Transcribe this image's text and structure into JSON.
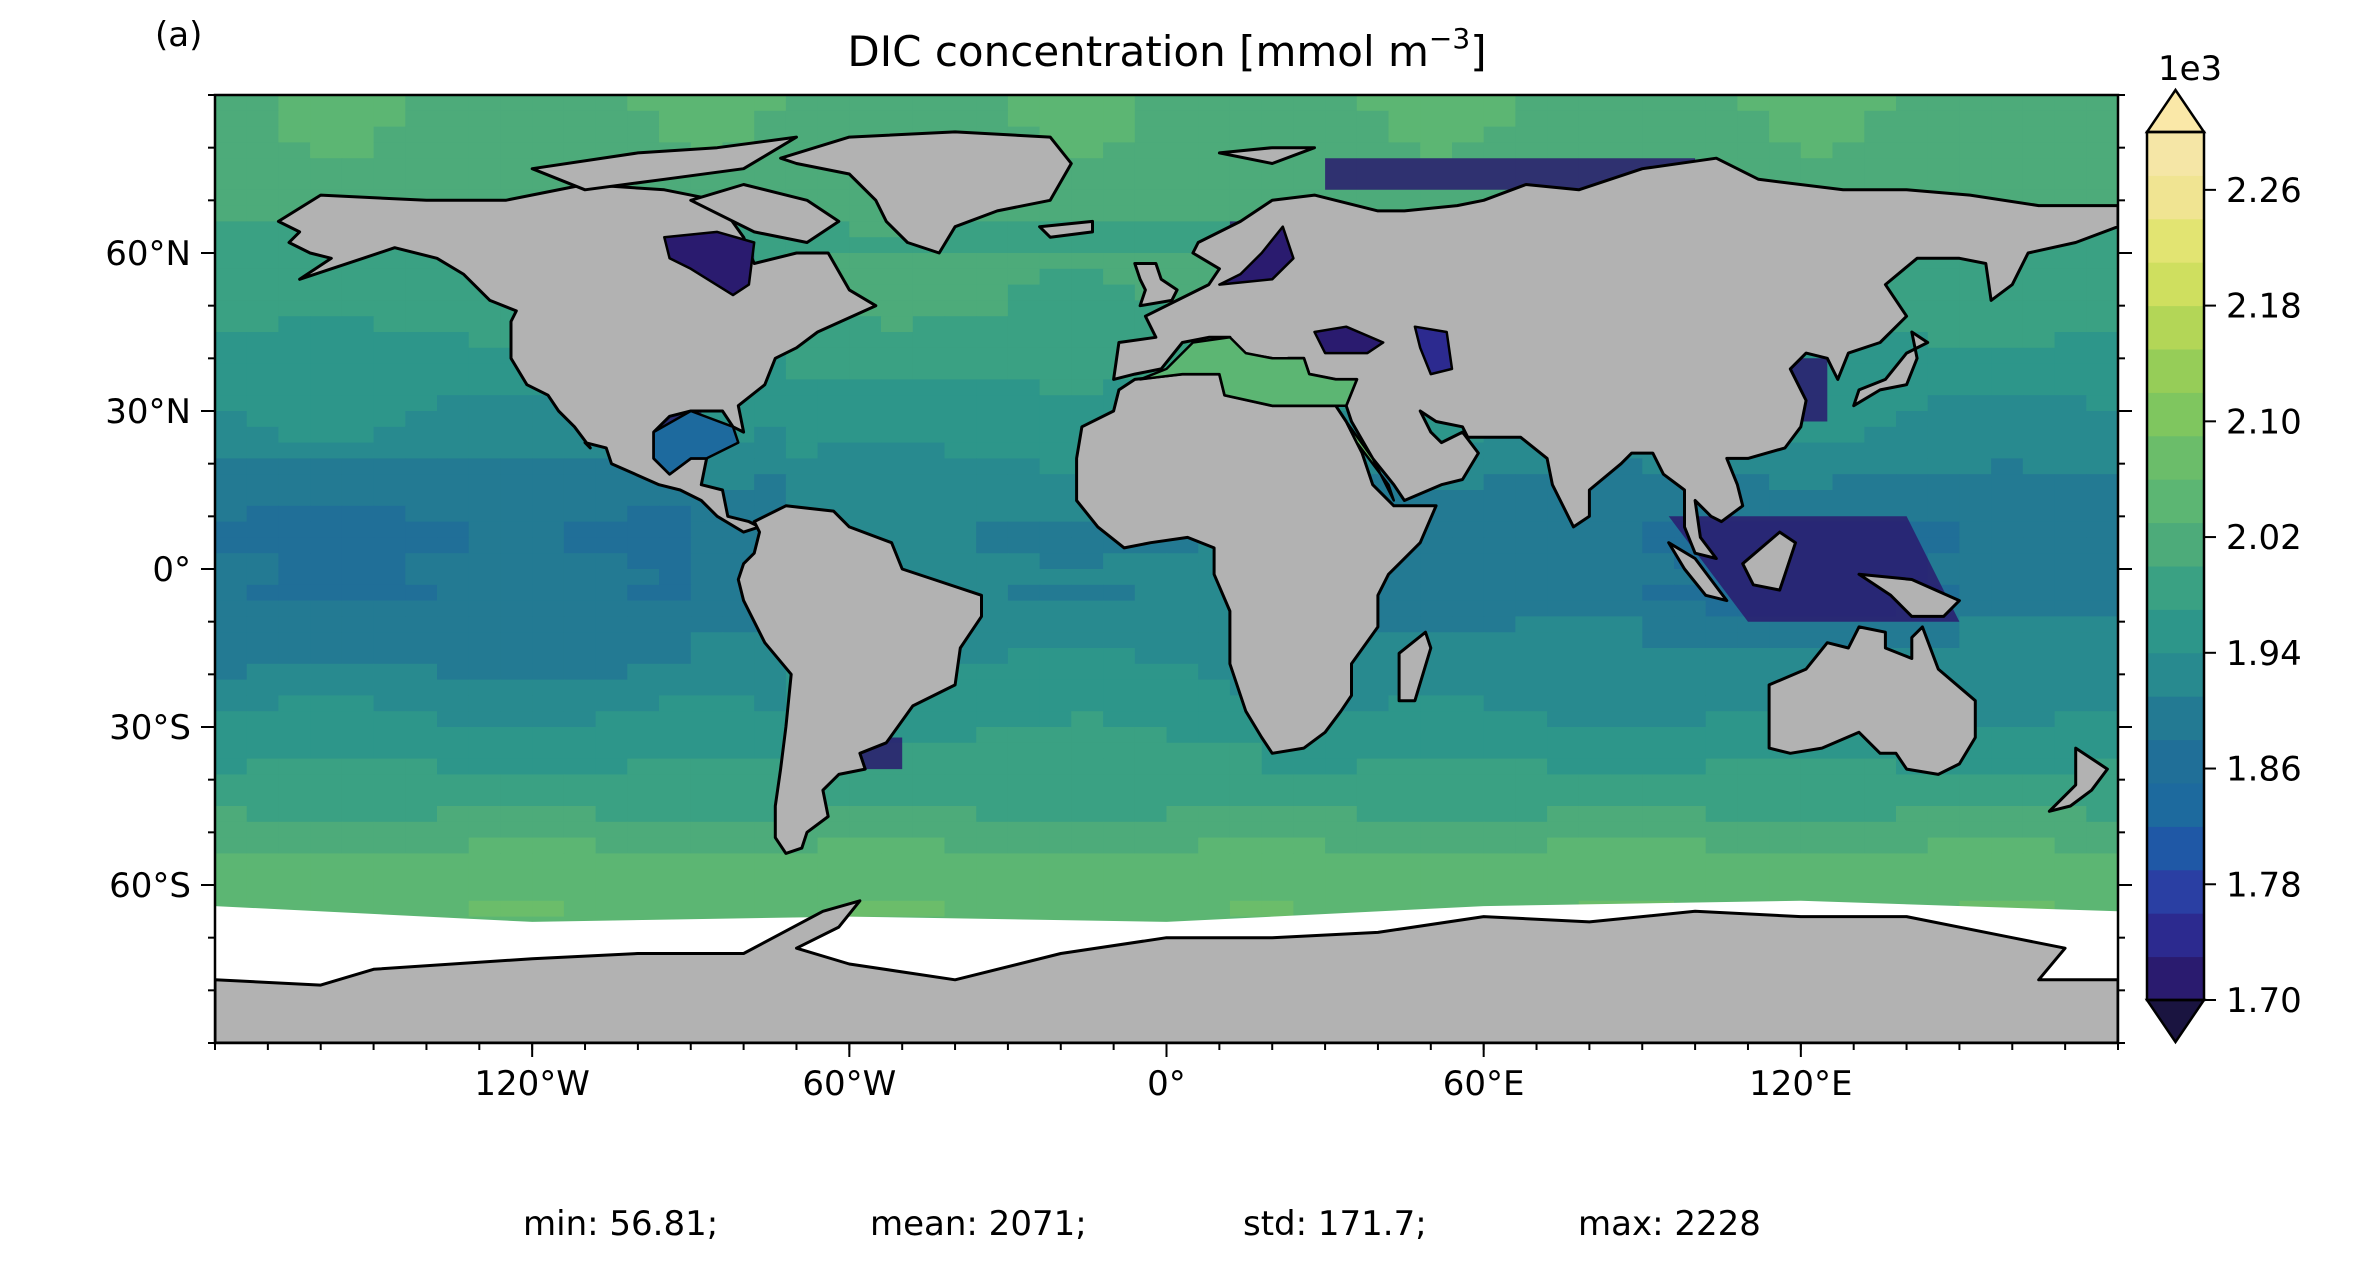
{
  "panel_label": "(a)",
  "title": {
    "prefix": "DIC concentration [mmol m",
    "superscript": "−3",
    "suffix": "]"
  },
  "map": {
    "projection": "equirectangular",
    "lon_range": [
      -180,
      180
    ],
    "lat_range": [
      -90,
      90
    ],
    "x_ticks": [
      {
        "lon": -120,
        "label": "120°W"
      },
      {
        "lon": -60,
        "label": "60°W"
      },
      {
        "lon": 0,
        "label": "0°"
      },
      {
        "lon": 60,
        "label": "60°E"
      },
      {
        "lon": 120,
        "label": "120°E"
      }
    ],
    "y_ticks": [
      {
        "lat": 60,
        "label": "60°N"
      },
      {
        "lat": 30,
        "label": "30°N"
      },
      {
        "lat": 0,
        "label": "0°"
      },
      {
        "lat": -30,
        "label": "30°S"
      },
      {
        "lat": -60,
        "label": "60°S"
      }
    ],
    "minor_tick_step_deg": 10,
    "land_color": "#b2b2b2",
    "ice_color": "#ffffff",
    "coastline_color": "#000000"
  },
  "colorbar": {
    "exponent_label": "1e3",
    "min": 1.7,
    "max": 2.3,
    "step": 0.04,
    "extend": "both",
    "tick_values": [
      1.7,
      1.78,
      1.86,
      1.94,
      2.02,
      2.1,
      2.18,
      2.26
    ],
    "tick_labels": [
      "1.70",
      "1.78",
      "1.86",
      "1.94",
      "2.02",
      "2.10",
      "2.18",
      "2.26"
    ],
    "colors": [
      "#2a1b6f",
      "#2c2a8f",
      "#2a3fa3",
      "#1f58a6",
      "#1d6a9e",
      "#206f98",
      "#237a93",
      "#288a8f",
      "#2d968a",
      "#3aa183",
      "#4dab7a",
      "#5cb673",
      "#6bbd6a",
      "#7fc65f",
      "#96cd58",
      "#b3d657",
      "#cfdf5f",
      "#e2e472",
      "#f0e492",
      "#f5e6a6"
    ],
    "under_color": "#1a1440",
    "over_color": "#fae8a8"
  },
  "stats": {
    "min": "min: 56.81;",
    "mean": "mean: 2071;",
    "std": "std: 171.7;",
    "max": "max: 2228"
  }
}
